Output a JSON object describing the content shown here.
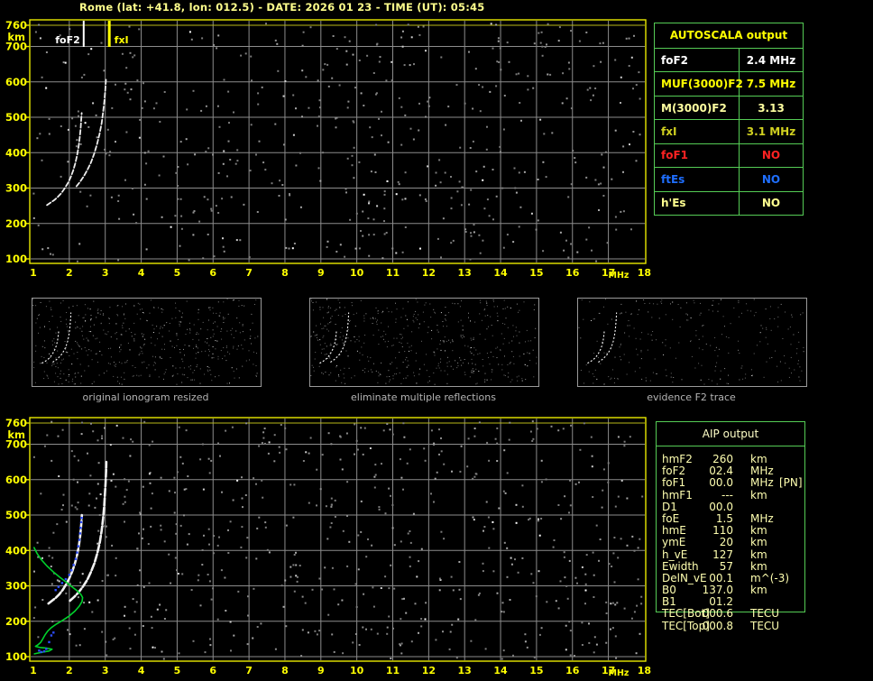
{
  "title": "Rome (lat: +41.8, lon: 012.5) - DATE: 2026 01 23 - TIME (UT): 05:45",
  "colors": {
    "background": "#000000",
    "axis_yellow": "#ffff00",
    "plot_border": "#e9e900",
    "grid_gray": "#8c8c8c",
    "table_border_green": "#55cc55",
    "trace_white": "#ededed",
    "profile_green": "#00d22c",
    "restored_blue": "#2d4dff",
    "caption_gray": "#b4b4b4"
  },
  "thumbnails": [
    {
      "caption": "original ionogram resized"
    },
    {
      "caption": "eliminate multiple reflections"
    },
    {
      "caption": "evidence F2 trace"
    }
  ],
  "autoscala_table": {
    "header": "AUTOSCALA output",
    "rows": [
      {
        "param": "foF2",
        "value": "2.4 MHz",
        "color": "#ffffff"
      },
      {
        "param": "MUF(3000)F2",
        "value": "7.5 MHz",
        "color": "#ffff00"
      },
      {
        "param": "M(3000)F2",
        "value": "3.13",
        "color": "#ffffa0"
      },
      {
        "param": "fxI",
        "value": "3.1 MHz",
        "color": "#d0d020"
      },
      {
        "param": "foF1",
        "value": "NO",
        "color": "#ff2222"
      },
      {
        "param": "ftEs",
        "value": "NO",
        "color": "#1f6fff"
      },
      {
        "param": "h'Es",
        "value": "NO",
        "color": "#ffff90"
      }
    ]
  },
  "aip_table": {
    "header": "AIP output",
    "rows": [
      [
        "hmF2",
        "260",
        "km",
        ""
      ],
      [
        "foF2",
        "02.4",
        "MHz",
        ""
      ],
      [
        "foF1",
        "00.0",
        "MHz",
        "[PN]"
      ],
      [
        "hmF1",
        "---",
        "km",
        ""
      ],
      [
        "D1",
        "00.0",
        "",
        ""
      ],
      [
        "foE",
        "1.5",
        "MHz",
        ""
      ],
      [
        "hmE",
        "110",
        "km",
        ""
      ],
      [
        "ymE",
        "20",
        "km",
        ""
      ],
      [
        "h_vE",
        "127",
        "km",
        ""
      ],
      [
        "Ewidth",
        "57",
        "km",
        ""
      ],
      [
        "DelN_vE",
        "00.1",
        "m^(-3)",
        ""
      ],
      [
        "B0",
        "137.0",
        "km",
        ""
      ],
      [
        "B1",
        "01.2",
        "",
        ""
      ],
      [
        "TEC[Bot]",
        "000.6",
        "TECU",
        ""
      ],
      [
        "TEC[Top]",
        "000.8",
        "TECU",
        ""
      ]
    ]
  },
  "chart_data": [
    {
      "id": "ionogram",
      "type": "scatter",
      "title": "",
      "xlabel": "frequency",
      "ylabel": "virtual height",
      "x_unit": "MHz",
      "y_unit": "km",
      "xlim": [
        1,
        18
      ],
      "ylim": [
        100,
        760
      ],
      "grid": true,
      "x_tick_labels": [
        "1",
        "2",
        "3",
        "4",
        "5",
        "6",
        "7",
        "8",
        "9",
        "10",
        "11",
        "12",
        "13",
        "14",
        "15",
        "16",
        "17",
        "18"
      ],
      "y_tick_labels": [
        "760",
        "700",
        "600",
        "500",
        "400",
        "300",
        "200",
        "100"
      ],
      "markers": [
        {
          "label": "foF2",
          "mhz": 2.4,
          "color": "#ffffff"
        },
        {
          "label": "fxI",
          "mhz": 3.1,
          "color": "#ffff00"
        }
      ],
      "series": [
        {
          "name": "O-mode echo trace",
          "color": "#ededed",
          "points": [
            [
              1.38,
              252
            ],
            [
              1.48,
              259
            ],
            [
              1.58,
              266
            ],
            [
              1.68,
              275
            ],
            [
              1.78,
              286
            ],
            [
              1.87,
              299
            ],
            [
              1.96,
              314
            ],
            [
              2.04,
              331
            ],
            [
              2.11,
              350
            ],
            [
              2.17,
              371
            ],
            [
              2.22,
              394
            ],
            [
              2.26,
              418
            ],
            [
              2.29,
              443
            ],
            [
              2.315,
              468
            ],
            [
              2.33,
              492
            ],
            [
              2.345,
              512
            ]
          ]
        },
        {
          "name": "X-mode echo trace",
          "color": "#ededed",
          "points": [
            [
              2.2,
              305
            ],
            [
              2.3,
              318
            ],
            [
              2.4,
              333
            ],
            [
              2.5,
              351
            ],
            [
              2.6,
              372
            ],
            [
              2.69,
              396
            ],
            [
              2.77,
              423
            ],
            [
              2.84,
              452
            ],
            [
              2.9,
              483
            ],
            [
              2.94,
              514
            ],
            [
              2.975,
              545
            ],
            [
              3.0,
              576
            ],
            [
              3.02,
              606
            ]
          ]
        }
      ]
    },
    {
      "id": "ionogram_with_profile",
      "type": "scatter",
      "title": "",
      "xlabel": "frequency",
      "ylabel": "height",
      "x_unit": "MHz",
      "y_unit": "km",
      "xlim": [
        1,
        18
      ],
      "ylim": [
        100,
        760
      ],
      "grid": true,
      "x_tick_labels": [
        "1",
        "2",
        "3",
        "4",
        "5",
        "6",
        "7",
        "8",
        "9",
        "10",
        "11",
        "12",
        "13",
        "14",
        "15",
        "16",
        "17",
        "18"
      ],
      "y_tick_labels": [
        "760",
        "700",
        "600",
        "500",
        "400",
        "300",
        "200",
        "100"
      ],
      "markers": [],
      "series": [
        {
          "name": "O-mode echo trace",
          "color": "#f0f0f0",
          "points": [
            [
              1.42,
              250
            ],
            [
              1.52,
              258
            ],
            [
              1.62,
              266
            ],
            [
              1.72,
              276
            ],
            [
              1.82,
              289
            ],
            [
              1.91,
              304
            ],
            [
              2.0,
              321
            ],
            [
              2.08,
              340
            ],
            [
              2.15,
              361
            ],
            [
              2.21,
              384
            ],
            [
              2.26,
              409
            ],
            [
              2.295,
              434
            ],
            [
              2.32,
              459
            ],
            [
              2.34,
              483
            ],
            [
              2.35,
              500
            ]
          ]
        },
        {
          "name": "X-mode echo trace",
          "color": "#f0f0f0",
          "points": [
            [
              2.02,
              258
            ],
            [
              2.14,
              269
            ],
            [
              2.26,
              282
            ],
            [
              2.38,
              298
            ],
            [
              2.5,
              317
            ],
            [
              2.6,
              339
            ],
            [
              2.7,
              364
            ],
            [
              2.78,
              392
            ],
            [
              2.85,
              423
            ],
            [
              2.9,
              456
            ],
            [
              2.94,
              490
            ],
            [
              2.97,
              524
            ],
            [
              2.99,
              558
            ],
            [
              3.01,
              592
            ],
            [
              3.025,
              625
            ],
            [
              3.03,
              650
            ]
          ]
        },
        {
          "name": "electron density profile",
          "color": "#00d22c",
          "style": "line",
          "points": [
            [
              1.02,
              408
            ],
            [
              1.1,
              392
            ],
            [
              1.22,
              374
            ],
            [
              1.38,
              356
            ],
            [
              1.56,
              339
            ],
            [
              1.74,
              324
            ],
            [
              1.92,
              310
            ],
            [
              2.08,
              297
            ],
            [
              2.22,
              286
            ],
            [
              2.32,
              276
            ],
            [
              2.37,
              267
            ],
            [
              2.355,
              256
            ],
            [
              2.28,
              243
            ],
            [
              2.16,
              229
            ],
            [
              2.0,
              215
            ],
            [
              1.82,
              203
            ],
            [
              1.64,
              192
            ],
            [
              1.5,
              182
            ],
            [
              1.4,
              172
            ],
            [
              1.32,
              161
            ],
            [
              1.26,
              150
            ],
            [
              1.2,
              140
            ],
            [
              1.12,
              133
            ],
            [
              1.06,
              129
            ],
            [
              1.18,
              126
            ],
            [
              1.38,
              124
            ],
            [
              1.52,
              121
            ],
            [
              1.44,
              116
            ],
            [
              1.28,
              113
            ],
            [
              1.12,
              110
            ],
            [
              1.03,
              108
            ]
          ]
        },
        {
          "name": "restored trace points",
          "color": "#2d4dff",
          "style": "points",
          "points": [
            [
              1.16,
              117
            ],
            [
              1.22,
              113
            ],
            [
              1.3,
              115
            ],
            [
              1.36,
              122
            ],
            [
              1.44,
              141
            ],
            [
              1.5,
              160
            ],
            [
              1.56,
              168
            ],
            [
              1.62,
              288
            ],
            [
              1.7,
              297
            ],
            [
              1.8,
              308
            ],
            [
              1.9,
              319
            ],
            [
              2.0,
              331
            ],
            [
              2.06,
              344
            ],
            [
              2.12,
              359
            ],
            [
              2.18,
              376
            ],
            [
              2.22,
              394
            ],
            [
              2.25,
              412
            ],
            [
              2.28,
              430
            ],
            [
              2.3,
              448
            ],
            [
              2.315,
              464
            ],
            [
              2.33,
              480
            ],
            [
              2.345,
              492
            ]
          ]
        }
      ]
    }
  ]
}
